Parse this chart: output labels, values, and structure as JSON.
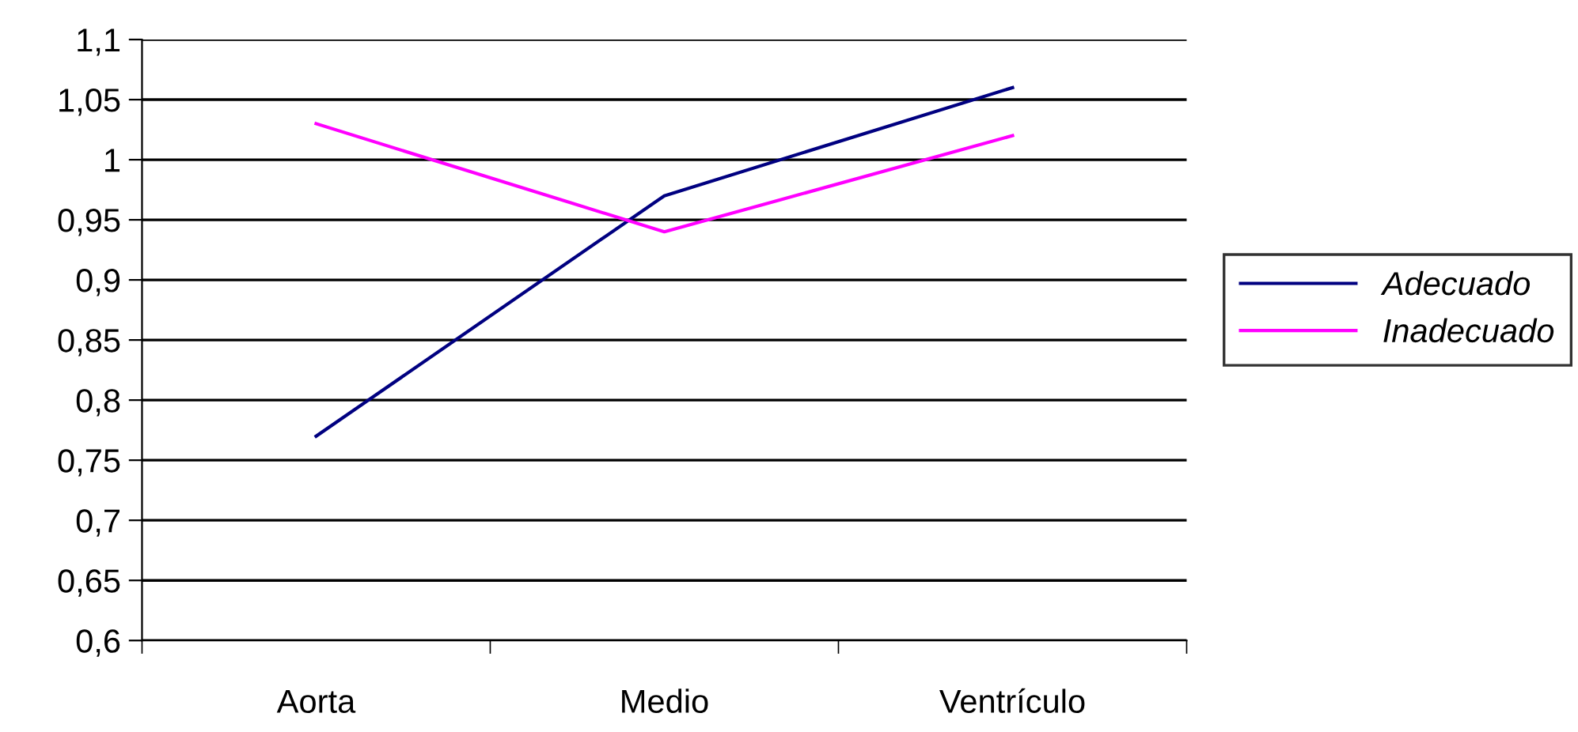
{
  "chart_data": {
    "type": "line",
    "categories": [
      "Aorta",
      "Medio",
      "Ventrículo"
    ],
    "series": [
      {
        "name": "Adecuado",
        "color": "#000080",
        "values": [
          0.77,
          0.97,
          1.06
        ]
      },
      {
        "name": "Inadecuado",
        "color": "#ff00ff",
        "values": [
          1.03,
          0.94,
          1.02
        ]
      }
    ],
    "ylim": [
      0.6,
      1.1
    ],
    "yticks": [
      {
        "value": 0.6,
        "label": "0,6"
      },
      {
        "value": 0.65,
        "label": "0,65"
      },
      {
        "value": 0.7,
        "label": "0,7"
      },
      {
        "value": 0.75,
        "label": "0,75"
      },
      {
        "value": 0.8,
        "label": "0,8"
      },
      {
        "value": 0.85,
        "label": "0,85"
      },
      {
        "value": 0.9,
        "label": "0,9"
      },
      {
        "value": 0.95,
        "label": "0,95"
      },
      {
        "value": 1,
        "label": "1"
      },
      {
        "value": 1.05,
        "label": "1,05"
      },
      {
        "value": 1.1,
        "label": "1,1"
      }
    ],
    "grid": "y",
    "legend": "right",
    "marker": "none",
    "line_style": "solid"
  }
}
